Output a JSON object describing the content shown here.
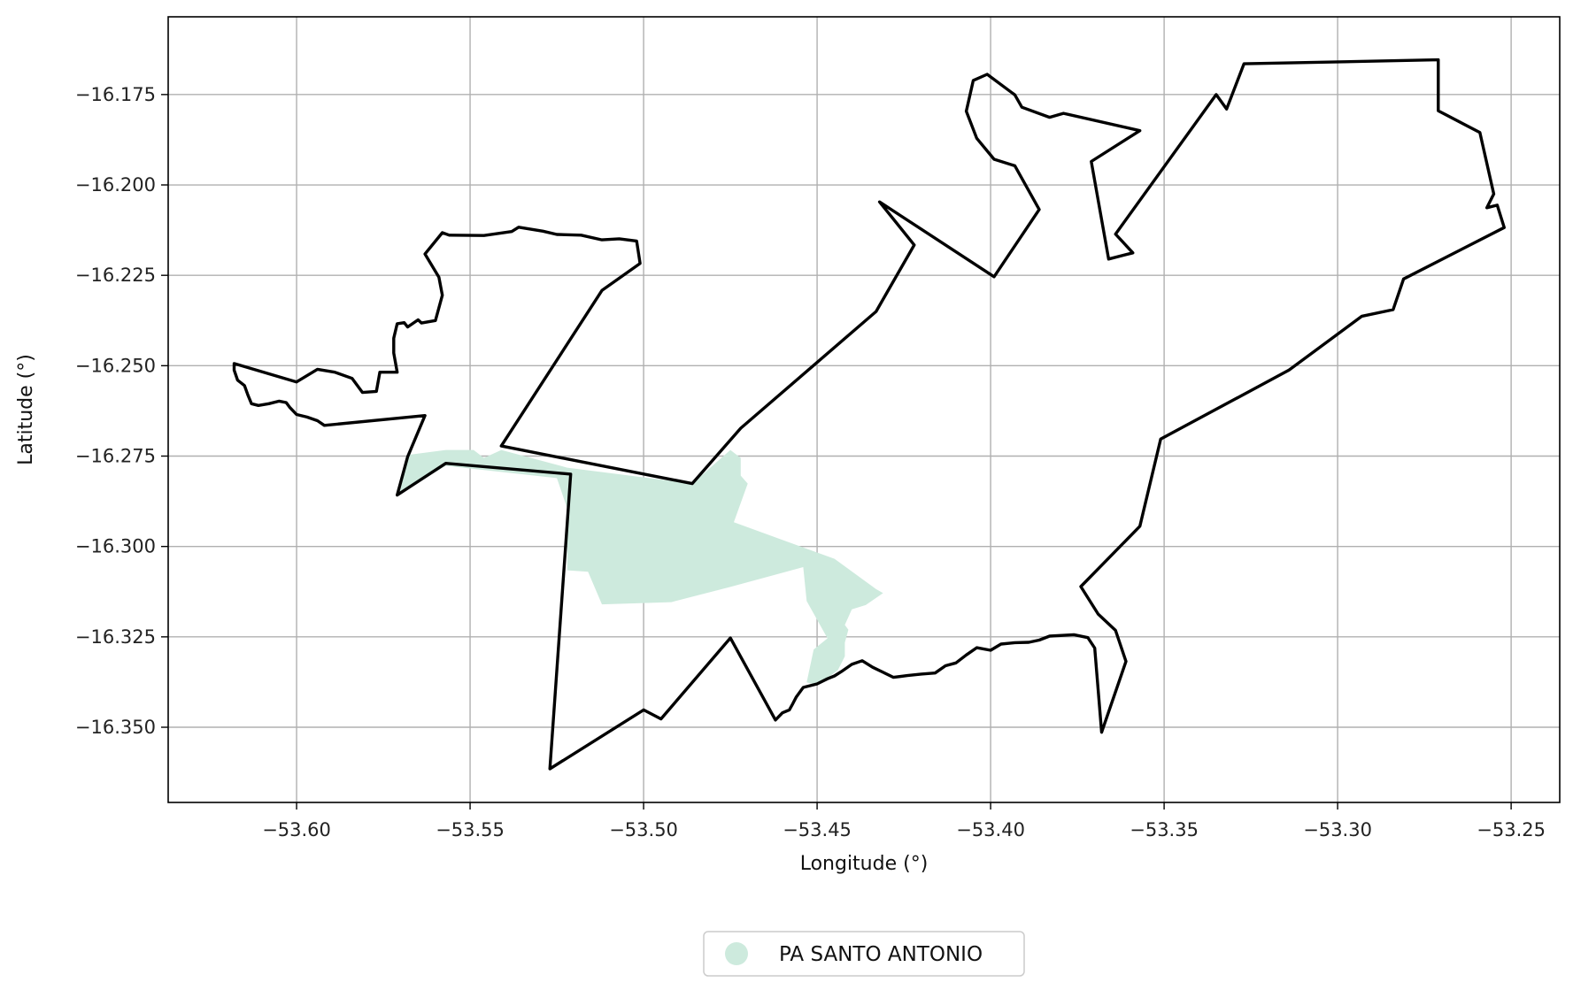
{
  "chart_data": {
    "type": "map",
    "xlabel": "Longitude (°)",
    "ylabel": "Latitude (°)",
    "xlim": [
      -53.637,
      -53.236
    ],
    "ylim": [
      -16.3708,
      -16.1535
    ],
    "x_ticks": [
      {
        "value": -53.6,
        "label": "−53.60"
      },
      {
        "value": -53.55,
        "label": "−53.55"
      },
      {
        "value": -53.5,
        "label": "−53.50"
      },
      {
        "value": -53.45,
        "label": "−53.45"
      },
      {
        "value": -53.4,
        "label": "−53.40"
      },
      {
        "value": -53.35,
        "label": "−53.35"
      },
      {
        "value": -53.3,
        "label": "−53.30"
      },
      {
        "value": -53.25,
        "label": "−53.25"
      }
    ],
    "y_ticks": [
      {
        "value": -16.175,
        "label": "−16.175"
      },
      {
        "value": -16.2,
        "label": "−16.200"
      },
      {
        "value": -16.225,
        "label": "−16.225"
      },
      {
        "value": -16.25,
        "label": "−16.250"
      },
      {
        "value": -16.275,
        "label": "−16.275"
      },
      {
        "value": -16.3,
        "label": "−16.300"
      },
      {
        "value": -16.325,
        "label": "−16.325"
      },
      {
        "value": -16.35,
        "label": "−16.350"
      }
    ],
    "grid": true,
    "legend": {
      "placement": "bottom-center",
      "entries": [
        {
          "label": "PA SANTO ANTONIO",
          "color": "#cdeadd"
        }
      ]
    },
    "layers": [
      {
        "name": "PA SANTO ANTONIO",
        "kind": "filled-area",
        "color": "#cdeadd",
        "coords": [
          [
            -53.568,
            -16.2747
          ],
          [
            -53.557,
            -16.2733
          ],
          [
            -53.549,
            -16.2733
          ],
          [
            -53.546,
            -16.2755
          ],
          [
            -53.541,
            -16.2733
          ],
          [
            -53.522,
            -16.2782
          ],
          [
            -53.486,
            -16.2826
          ],
          [
            -53.475,
            -16.2733
          ],
          [
            -53.472,
            -16.2755
          ],
          [
            -53.472,
            -16.2804
          ],
          [
            -53.47,
            -16.2826
          ],
          [
            -53.474,
            -16.2933
          ],
          [
            -53.445,
            -16.3034
          ],
          [
            -53.433,
            -16.3118
          ],
          [
            -53.431,
            -16.3129
          ],
          [
            -53.436,
            -16.3162
          ],
          [
            -53.44,
            -16.3174
          ],
          [
            -53.442,
            -16.3217
          ],
          [
            -53.441,
            -16.323
          ],
          [
            -53.442,
            -16.3266
          ],
          [
            -53.442,
            -16.3304
          ],
          [
            -53.444,
            -16.3342
          ],
          [
            -53.448,
            -16.3371
          ],
          [
            -53.451,
            -16.3381
          ],
          [
            -53.453,
            -16.3376
          ],
          [
            -53.451,
            -16.3285
          ],
          [
            -53.447,
            -16.3254
          ],
          [
            -53.453,
            -16.3151
          ],
          [
            -53.454,
            -16.3057
          ],
          [
            -53.475,
            -16.3112
          ],
          [
            -53.492,
            -16.3154
          ],
          [
            -53.512,
            -16.316
          ],
          [
            -53.516,
            -16.307
          ],
          [
            -53.522,
            -16.3066
          ],
          [
            -53.522,
            -16.2895
          ],
          [
            -53.525,
            -16.2811
          ],
          [
            -53.557,
            -16.2777
          ],
          [
            -53.571,
            -16.2857
          ],
          [
            -53.568,
            -16.2747
          ]
        ]
      },
      {
        "name": "boundary",
        "kind": "outline",
        "color": "#000000",
        "coords": [
          [
            -53.618,
            -16.2494
          ],
          [
            -53.6,
            -16.2545
          ],
          [
            -53.594,
            -16.251
          ],
          [
            -53.589,
            -16.2518
          ],
          [
            -53.584,
            -16.2535
          ],
          [
            -53.581,
            -16.2574
          ],
          [
            -53.577,
            -16.2571
          ],
          [
            -53.576,
            -16.2518
          ],
          [
            -53.571,
            -16.2518
          ],
          [
            -53.572,
            -16.2465
          ],
          [
            -53.572,
            -16.2424
          ],
          [
            -53.571,
            -16.2384
          ],
          [
            -53.569,
            -16.2381
          ],
          [
            -53.568,
            -16.2393
          ],
          [
            -53.565,
            -16.2373
          ],
          [
            -53.564,
            -16.2382
          ],
          [
            -53.56,
            -16.2375
          ],
          [
            -53.558,
            -16.2305
          ],
          [
            -53.559,
            -16.2255
          ],
          [
            -53.563,
            -16.2191
          ],
          [
            -53.558,
            -16.2132
          ],
          [
            -53.556,
            -16.2139
          ],
          [
            -53.546,
            -16.214
          ],
          [
            -53.538,
            -16.2129
          ],
          [
            -53.536,
            -16.2117
          ],
          [
            -53.529,
            -16.2128
          ],
          [
            -53.525,
            -16.2137
          ],
          [
            -53.518,
            -16.2139
          ],
          [
            -53.512,
            -16.2152
          ],
          [
            -53.507,
            -16.2149
          ],
          [
            -53.502,
            -16.2155
          ],
          [
            -53.501,
            -16.2217
          ],
          [
            -53.512,
            -16.2292
          ],
          [
            -53.541,
            -16.2722
          ],
          [
            -53.486,
            -16.2826
          ],
          [
            -53.472,
            -16.2673
          ],
          [
            -53.433,
            -16.235
          ],
          [
            -53.422,
            -16.2166
          ],
          [
            -53.432,
            -16.2047
          ],
          [
            -53.399,
            -16.2254
          ],
          [
            -53.386,
            -16.2068
          ],
          [
            -53.393,
            -16.1947
          ],
          [
            -53.399,
            -16.1929
          ],
          [
            -53.404,
            -16.1871
          ],
          [
            -53.407,
            -16.1796
          ],
          [
            -53.405,
            -16.1711
          ],
          [
            -53.401,
            -16.1694
          ],
          [
            -53.393,
            -16.1751
          ],
          [
            -53.391,
            -16.1785
          ],
          [
            -53.383,
            -16.1813
          ],
          [
            -53.379,
            -16.1802
          ],
          [
            -53.357,
            -16.185
          ],
          [
            -53.371,
            -16.1935
          ],
          [
            -53.366,
            -16.2205
          ],
          [
            -53.359,
            -16.2188
          ],
          [
            -53.364,
            -16.2136
          ],
          [
            -53.335,
            -16.175
          ],
          [
            -53.332,
            -16.179
          ],
          [
            -53.327,
            -16.1665
          ],
          [
            -53.271,
            -16.1654
          ],
          [
            -53.271,
            -16.1795
          ],
          [
            -53.259,
            -16.1855
          ],
          [
            -53.255,
            -16.2025
          ],
          [
            -53.257,
            -16.2063
          ],
          [
            -53.254,
            -16.2056
          ],
          [
            -53.252,
            -16.2118
          ],
          [
            -53.281,
            -16.226
          ],
          [
            -53.284,
            -16.2345
          ],
          [
            -53.293,
            -16.2363
          ],
          [
            -53.314,
            -16.2512
          ],
          [
            -53.351,
            -16.2703
          ],
          [
            -53.357,
            -16.2944
          ],
          [
            -53.374,
            -16.3111
          ],
          [
            -53.369,
            -16.3187
          ],
          [
            -53.364,
            -16.3232
          ],
          [
            -53.361,
            -16.3318
          ],
          [
            -53.368,
            -16.3514
          ],
          [
            -53.37,
            -16.3281
          ],
          [
            -53.372,
            -16.3252
          ],
          [
            -53.376,
            -16.3244
          ],
          [
            -53.383,
            -16.3248
          ],
          [
            -53.386,
            -16.3259
          ],
          [
            -53.389,
            -16.3265
          ],
          [
            -53.393,
            -16.3266
          ],
          [
            -53.397,
            -16.327
          ],
          [
            -53.4,
            -16.3287
          ],
          [
            -53.404,
            -16.328
          ],
          [
            -53.407,
            -16.33
          ],
          [
            -53.41,
            -16.3322
          ],
          [
            -53.413,
            -16.333
          ],
          [
            -53.416,
            -16.335
          ],
          [
            -53.42,
            -16.3353
          ],
          [
            -53.424,
            -16.3357
          ],
          [
            -53.428,
            -16.3362
          ],
          [
            -53.431,
            -16.3348
          ],
          [
            -53.434,
            -16.3334
          ],
          [
            -53.437,
            -16.3316
          ],
          [
            -53.44,
            -16.3326
          ],
          [
            -53.443,
            -16.3346
          ],
          [
            -53.445,
            -16.3358
          ],
          [
            -53.447,
            -16.3366
          ],
          [
            -53.45,
            -16.338
          ],
          [
            -53.454,
            -16.339
          ],
          [
            -53.456,
            -16.3416
          ],
          [
            -53.457,
            -16.3435
          ],
          [
            -53.458,
            -16.3452
          ],
          [
            -53.46,
            -16.346
          ],
          [
            -53.462,
            -16.348
          ],
          [
            -53.475,
            -16.3253
          ],
          [
            -53.495,
            -16.3477
          ],
          [
            -53.5,
            -16.3452
          ],
          [
            -53.527,
            -16.3615
          ],
          [
            -53.521,
            -16.28
          ],
          [
            -53.557,
            -16.277
          ],
          [
            -53.571,
            -16.2858
          ],
          [
            -53.568,
            -16.2752
          ],
          [
            -53.563,
            -16.2638
          ],
          [
            -53.592,
            -16.2665
          ],
          [
            -53.594,
            -16.2652
          ],
          [
            -53.597,
            -16.2642
          ],
          [
            -53.6,
            -16.2635
          ],
          [
            -53.602,
            -16.2615
          ],
          [
            -53.603,
            -16.2602
          ],
          [
            -53.605,
            -16.2598
          ],
          [
            -53.608,
            -16.2605
          ],
          [
            -53.611,
            -16.261
          ],
          [
            -53.613,
            -16.2605
          ],
          [
            -53.614,
            -16.2582
          ],
          [
            -53.615,
            -16.2555
          ],
          [
            -53.617,
            -16.254
          ],
          [
            -53.618,
            -16.2512
          ],
          [
            -53.618,
            -16.2494
          ]
        ]
      }
    ]
  }
}
